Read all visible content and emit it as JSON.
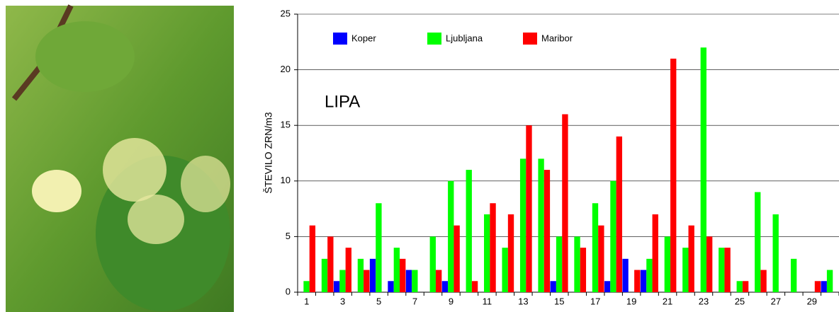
{
  "chart_data": {
    "type": "bar",
    "annotation": "LIPA",
    "y_label": "ŠTEVILO ZRN/m3",
    "categories": [
      "1",
      null,
      "3",
      null,
      "5",
      null,
      "7",
      null,
      "9",
      null,
      "11",
      null,
      "13",
      null,
      "15",
      null,
      "17",
      null,
      "19",
      null,
      "21",
      null,
      "23",
      null,
      "25",
      null,
      "27",
      null,
      "29",
      null
    ],
    "series": [
      {
        "name": "Koper",
        "color": "#0000ff",
        "values": [
          0,
          0,
          1,
          0,
          3,
          1,
          2,
          0,
          1,
          0,
          0,
          0,
          0,
          0,
          1,
          0,
          0,
          1,
          3,
          2,
          0,
          0,
          0,
          0,
          0,
          0,
          0,
          0,
          0,
          1
        ]
      },
      {
        "name": "Ljubljana",
        "color": "#00ff00",
        "values": [
          1,
          3,
          2,
          3,
          8,
          4,
          2,
          5,
          10,
          11,
          7,
          4,
          12,
          12,
          5,
          5,
          8,
          10,
          0,
          3,
          5,
          4,
          22,
          4,
          1,
          9,
          7,
          3,
          0,
          2
        ]
      },
      {
        "name": "Maribor",
        "color": "#ff0000",
        "values": [
          6,
          5,
          4,
          2,
          0,
          3,
          0,
          2,
          6,
          1,
          8,
          7,
          15,
          11,
          16,
          4,
          6,
          14,
          2,
          7,
          21,
          6,
          5,
          4,
          1,
          2,
          0,
          0,
          1,
          0
        ]
      }
    ],
    "ylim": [
      0,
      25
    ],
    "yticks": [
      0,
      5,
      10,
      15,
      20,
      25
    ],
    "grid": true
  }
}
